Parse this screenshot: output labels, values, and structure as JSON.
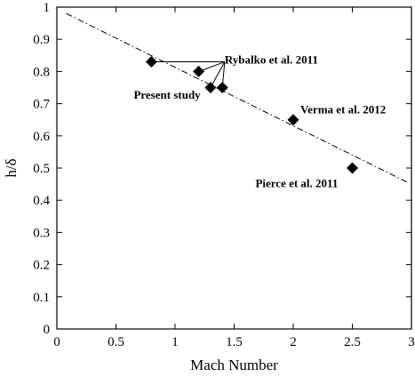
{
  "chart_data": {
    "type": "scatter",
    "xlabel": "Mach Number",
    "ylabel": "h/δ",
    "xlim": [
      0,
      3
    ],
    "ylim": [
      0,
      1
    ],
    "x_ticks": [
      0,
      0.5,
      1,
      1.5,
      2,
      2.5,
      3
    ],
    "y_ticks": [
      0,
      0.1,
      0.2,
      0.3,
      0.4,
      0.5,
      0.6,
      0.7,
      0.8,
      0.9,
      1
    ],
    "grid": false,
    "legend": "none",
    "fit_line": {
      "x": [
        0.08,
        2.97
      ],
      "y": [
        0.98,
        0.455
      ]
    },
    "points": [
      {
        "x": 0.8,
        "y": 0.83
      },
      {
        "x": 1.2,
        "y": 0.8
      },
      {
        "x": 1.3,
        "y": 0.75
      },
      {
        "x": 1.4,
        "y": 0.75
      },
      {
        "x": 2.0,
        "y": 0.65
      },
      {
        "x": 2.5,
        "y": 0.5
      }
    ],
    "annotations": [
      {
        "text": "Rybalko et al. 2011",
        "x": 1.42,
        "y": 0.825
      },
      {
        "text": "Present study",
        "x": 0.65,
        "y": 0.715
      },
      {
        "text": "Verma et al. 2012",
        "x": 2.06,
        "y": 0.67
      },
      {
        "text": "Pierce et al. 2011",
        "x": 1.68,
        "y": 0.44
      }
    ],
    "leaders": [
      {
        "from": [
          1.42,
          0.83
        ],
        "to": [
          0.8,
          0.83
        ]
      },
      {
        "from": [
          1.42,
          0.83
        ],
        "to": [
          1.2,
          0.8
        ]
      },
      {
        "from": [
          1.42,
          0.83
        ],
        "to": [
          1.3,
          0.75
        ]
      },
      {
        "from": [
          1.42,
          0.83
        ],
        "to": [
          1.4,
          0.75
        ]
      }
    ]
  }
}
